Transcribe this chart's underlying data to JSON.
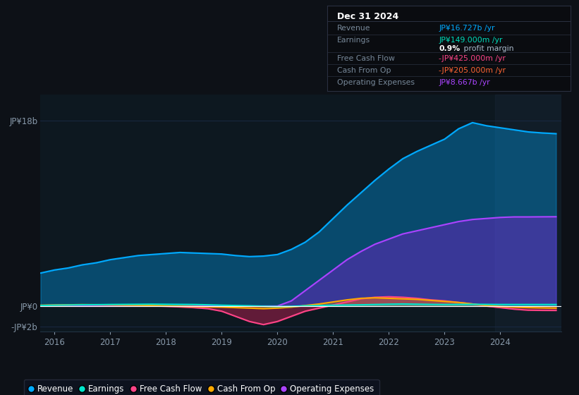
{
  "background_color": "#0d1117",
  "plot_bg_color": "#0d1820",
  "x_ticks": [
    2016,
    2017,
    2018,
    2019,
    2020,
    2021,
    2022,
    2023,
    2024
  ],
  "ylim": [
    -2500000000.0,
    20500000000.0
  ],
  "legend_items": [
    {
      "label": "Revenue",
      "color": "#00aaff"
    },
    {
      "label": "Earnings",
      "color": "#00e5cc"
    },
    {
      "label": "Free Cash Flow",
      "color": "#ff4488"
    },
    {
      "label": "Cash From Op",
      "color": "#ffaa00"
    },
    {
      "label": "Operating Expenses",
      "color": "#aa44ff"
    }
  ],
  "info_box": {
    "title": "Dec 31 2024",
    "rows": [
      {
        "label": "Revenue",
        "value": "JP¥16.727b /yr",
        "value_color": "#00aaff"
      },
      {
        "label": "Earnings",
        "value": "JP¥149.000m /yr",
        "value_color": "#00ddbb"
      },
      {
        "label": "",
        "value_bold": "0.9%",
        "value_rest": " profit margin"
      },
      {
        "label": "Free Cash Flow",
        "value": "-JP¥425.000m /yr",
        "value_color": "#ff4488"
      },
      {
        "label": "Cash From Op",
        "value": "-JP¥205.000m /yr",
        "value_color": "#ff6633"
      },
      {
        "label": "Operating Expenses",
        "value": "JP¥8.667b /yr",
        "value_color": "#aa44ff"
      }
    ]
  },
  "series": {
    "years": [
      2015.75,
      2016.0,
      2016.25,
      2016.5,
      2016.75,
      2017.0,
      2017.25,
      2017.5,
      2017.75,
      2018.0,
      2018.25,
      2018.5,
      2018.75,
      2019.0,
      2019.25,
      2019.5,
      2019.75,
      2020.0,
      2020.25,
      2020.5,
      2020.75,
      2021.0,
      2021.25,
      2021.5,
      2021.75,
      2022.0,
      2022.25,
      2022.5,
      2022.75,
      2023.0,
      2023.25,
      2023.5,
      2023.75,
      2024.0,
      2024.25,
      2024.5,
      2024.75,
      2025.0
    ],
    "revenue": [
      3200000000.0,
      3500000000.0,
      3700000000.0,
      4000000000.0,
      4200000000.0,
      4500000000.0,
      4700000000.0,
      4900000000.0,
      5000000000.0,
      5100000000.0,
      5200000000.0,
      5150000000.0,
      5100000000.0,
      5050000000.0,
      4900000000.0,
      4800000000.0,
      4850000000.0,
      5000000000.0,
      5500000000.0,
      6200000000.0,
      7200000000.0,
      8500000000.0,
      9800000000.0,
      11000000000.0,
      12200000000.0,
      13300000000.0,
      14300000000.0,
      15000000000.0,
      15600000000.0,
      16200000000.0,
      17200000000.0,
      17800000000.0,
      17500000000.0,
      17300000000.0,
      17100000000.0,
      16900000000.0,
      16800000000.0,
      16727000000.0
    ],
    "operating_expenses": [
      0,
      0,
      0,
      0,
      0,
      0,
      0,
      0,
      0,
      0,
      0,
      0,
      0,
      0,
      0,
      0,
      0,
      0,
      500000000.0,
      1500000000.0,
      2500000000.0,
      3500000000.0,
      4500000000.0,
      5300000000.0,
      6000000000.0,
      6500000000.0,
      7000000000.0,
      7300000000.0,
      7600000000.0,
      7900000000.0,
      8200000000.0,
      8400000000.0,
      8500000000.0,
      8600000000.0,
      8650000000.0,
      8650000000.0,
      8660000000.0,
      8667000000.0
    ],
    "earnings": [
      50000000.0,
      80000000.0,
      100000000.0,
      120000000.0,
      130000000.0,
      150000000.0,
      160000000.0,
      170000000.0,
      180000000.0,
      170000000.0,
      160000000.0,
      150000000.0,
      120000000.0,
      80000000.0,
      50000000.0,
      20000000.0,
      -20000000.0,
      -50000000.0,
      -30000000.0,
      20000000.0,
      50000000.0,
      80000000.0,
      100000000.0,
      120000000.0,
      150000000.0,
      180000000.0,
      200000000.0,
      180000000.0,
      160000000.0,
      150000000.0,
      160000000.0,
      170000000.0,
      160000000.0,
      150000000.0,
      150000000.0,
      150000000.0,
      149000000.0,
      149000000.0
    ],
    "free_cash_flow": [
      50000000.0,
      80000000.0,
      100000000.0,
      120000000.0,
      100000000.0,
      90000000.0,
      70000000.0,
      50000000.0,
      20000000.0,
      -20000000.0,
      -80000000.0,
      -150000000.0,
      -250000000.0,
      -500000000.0,
      -1000000000.0,
      -1500000000.0,
      -1800000000.0,
      -1500000000.0,
      -1000000000.0,
      -500000000.0,
      -200000000.0,
      100000000.0,
      400000000.0,
      700000000.0,
      850000000.0,
      900000000.0,
      850000000.0,
      750000000.0,
      600000000.0,
      500000000.0,
      350000000.0,
      200000000.0,
      0.0,
      -150000000.0,
      -300000000.0,
      -400000000.0,
      -420000000.0,
      -425000000.0
    ],
    "cash_from_op": [
      80000000.0,
      100000000.0,
      120000000.0,
      140000000.0,
      130000000.0,
      120000000.0,
      100000000.0,
      80000000.0,
      50000000.0,
      20000000.0,
      -20000000.0,
      -50000000.0,
      -80000000.0,
      -100000000.0,
      -150000000.0,
      -200000000.0,
      -250000000.0,
      -200000000.0,
      -100000000.0,
      50000000.0,
      200000000.0,
      400000000.0,
      600000000.0,
      750000000.0,
      800000000.0,
      750000000.0,
      700000000.0,
      650000000.0,
      550000000.0,
      450000000.0,
      350000000.0,
      200000000.0,
      50000000.0,
      -50000000.0,
      -100000000.0,
      -150000000.0,
      -180000000.0,
      -205000000.0
    ]
  }
}
